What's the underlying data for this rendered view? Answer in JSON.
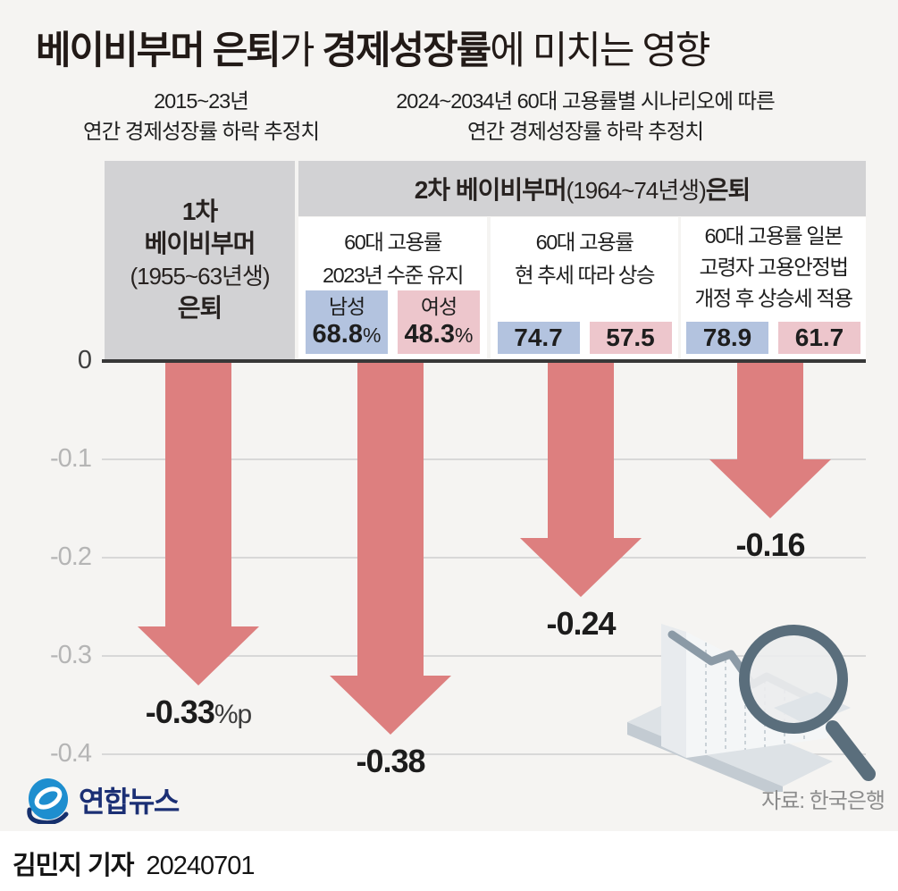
{
  "title": {
    "bold1": "베이비부머 은퇴",
    "regular1": "가 ",
    "bold2": "경제성장률",
    "regular2": "에 미치는 영향"
  },
  "subtitles": {
    "left_line1": "2015~23년",
    "left_line2": "연간 경제성장률 하락 추정치",
    "right_line1": "2024~2034년 60대 고용률별 시나리오에 따른",
    "right_line2": "연간 경제성장률 하락 추정치"
  },
  "header": {
    "group1": {
      "line1": "1차",
      "line2": "베이비부머",
      "line3": "(1955~63년생)",
      "line4": "은퇴"
    },
    "group2": {
      "bold1": "2차 베이비부머",
      "regular": " (1964~74년생) ",
      "bold2": "은퇴"
    }
  },
  "scenarios": [
    {
      "title_lines": [
        "60대 고용률",
        "2023년 수준 유지"
      ],
      "boxes": [
        {
          "gender": "male",
          "label": "남성",
          "value": "68.8",
          "suffix": "%"
        },
        {
          "gender": "female",
          "label": "여성",
          "value": "48.3",
          "suffix": "%"
        }
      ]
    },
    {
      "title_lines": [
        "60대 고용률",
        "현 추세 따라 상승"
      ],
      "boxes": [
        {
          "gender": "male",
          "value": "74.7"
        },
        {
          "gender": "female",
          "value": "57.5"
        }
      ]
    },
    {
      "title_lines": [
        "60대 고용률 일본",
        "고령자 고용안정법",
        "개정 후 상승세 적용"
      ],
      "boxes": [
        {
          "gender": "male",
          "value": "78.9"
        },
        {
          "gender": "female",
          "value": "61.7"
        }
      ]
    }
  ],
  "chart_data": {
    "type": "bar",
    "style": "downward-arrows",
    "categories": [
      "1차 베이비부머(1955~63년생) 은퇴",
      "2차 베이비부머: 60대 고용률 2023년 수준 유지",
      "2차 베이비부머: 60대 고용률 현 추세 따라 상승",
      "2차 베이비부머: 60대 고용률 일본 고령자 고용안정법 개정 후 상승세 적용"
    ],
    "values": [
      -0.33,
      -0.38,
      -0.24,
      -0.16
    ],
    "labels": [
      "-0.33",
      "-0.38",
      "-0.24",
      "-0.16"
    ],
    "label_suffixes": [
      "%p",
      "",
      "",
      ""
    ],
    "unit": "%p",
    "ylim": [
      -0.45,
      0
    ],
    "yticks": [
      0,
      -0.1,
      -0.2,
      -0.3,
      -0.4
    ],
    "ytick_labels": [
      "0",
      "-0.1",
      "-0.2",
      "-0.3",
      "-0.4"
    ],
    "grid": true,
    "legend": false
  },
  "footer": {
    "logo_text": "연합뉴스",
    "source": "자료: 한국은행",
    "reporter": "김민지 기자",
    "date": "20240701"
  },
  "colors": {
    "background": "#f5f4f2",
    "arrow": "#dd7f7f",
    "header_gray": "#d2d2d4",
    "male_box": "#b3c3df",
    "female_box": "#edc6cc",
    "navy": "#1b2f74",
    "logo_blue": "#1e8ecf",
    "gridline": "#d8d8d8",
    "zero_line": "#383838"
  }
}
